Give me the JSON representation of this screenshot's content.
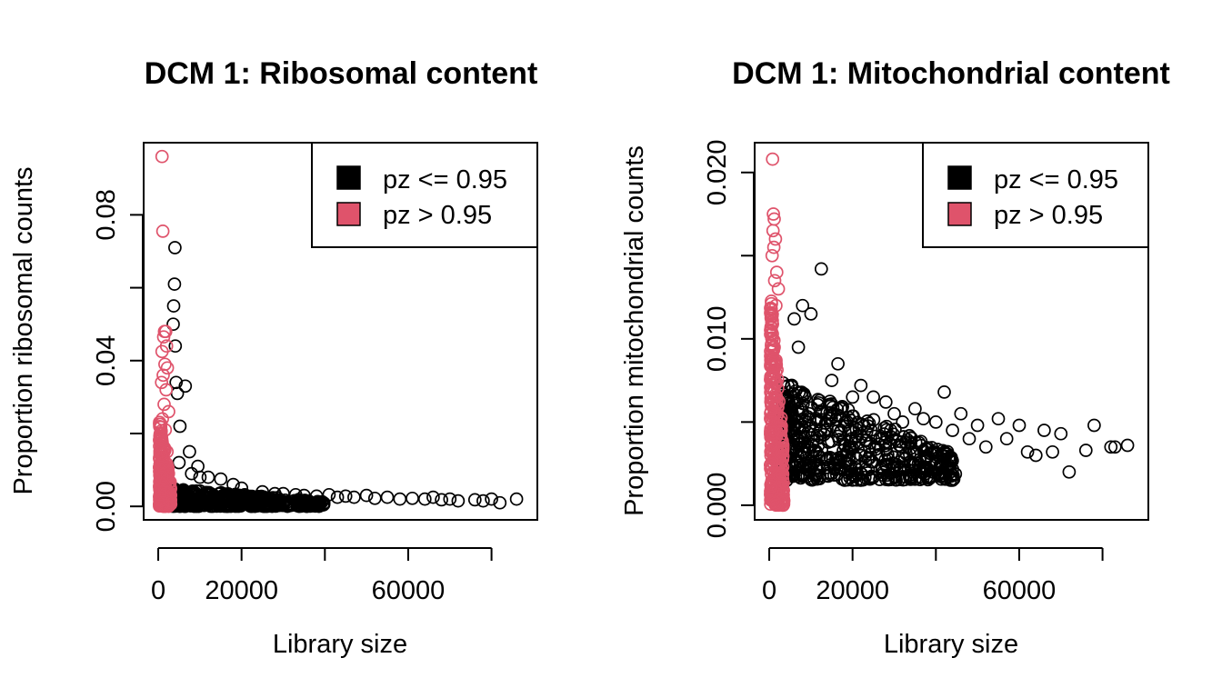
{
  "colors": {
    "black": "#000000",
    "red": "#DF536B",
    "background": "#ffffff"
  },
  "chart_data": [
    {
      "id": "ribo",
      "type": "scatter",
      "title": "DCM 1: Ribosomal content",
      "xlabel": "Library size",
      "ylabel": "Proportion ribosomal counts",
      "xlim": [
        -3500,
        91000
      ],
      "ylim": [
        -0.0037,
        0.0998
      ],
      "x_ticks": [
        0,
        20000,
        40000,
        60000,
        80000
      ],
      "x_tick_labels": [
        "0",
        "20000",
        "",
        "60000",
        ""
      ],
      "y_ticks": [
        0,
        0.02,
        0.04,
        0.06,
        0.08
      ],
      "y_tick_labels": [
        "0.00",
        "",
        "0.04",
        "",
        "0.08"
      ],
      "legend": {
        "position": "top-right",
        "items": [
          {
            "label": "pz <= 0.95",
            "color": "#000000"
          },
          {
            "label": "pz > 0.95",
            "color": "#DF536B"
          }
        ]
      },
      "series": [
        {
          "name": "pz > 0.95",
          "color": "#DF536B",
          "x": [
            900,
            1100,
            1500,
            1800,
            1300,
            2000,
            900,
            1600,
            2200,
            1200,
            800,
            1900,
            1400,
            2500,
            1000,
            1700,
            600,
            2100,
            1300,
            900
          ],
          "y": [
            0.096,
            0.0755,
            0.048,
            0.048,
            0.0465,
            0.044,
            0.0425,
            0.039,
            0.038,
            0.036,
            0.034,
            0.032,
            0.028,
            0.026,
            0.024,
            0.021,
            0.019,
            0.015,
            0.012,
            0.008
          ],
          "cloud": {
            "x": [
              300,
              3000
            ],
            "y": [
              0.0,
              0.025
            ],
            "n": 220
          }
        },
        {
          "name": "pz <= 0.95",
          "color": "#000000",
          "x": [
            4000,
            3900,
            3700,
            3600,
            4100,
            4300,
            6500,
            4600,
            5200,
            7500,
            9500,
            12000,
            5000,
            8000,
            10000,
            15000,
            18000,
            20000,
            25000,
            28000,
            30000,
            33000,
            35000,
            38000,
            41000,
            43000,
            45000,
            47000,
            50000,
            52000,
            55000,
            58000,
            61000,
            64000,
            66000,
            68000,
            70000,
            72000,
            76000,
            78000,
            80000,
            82000,
            86000
          ],
          "y": [
            0.071,
            0.061,
            0.055,
            0.05,
            0.044,
            0.034,
            0.033,
            0.031,
            0.022,
            0.015,
            0.011,
            0.008,
            0.012,
            0.009,
            0.008,
            0.0075,
            0.006,
            0.005,
            0.004,
            0.0035,
            0.0035,
            0.0032,
            0.003,
            0.0028,
            0.0032,
            0.0025,
            0.0028,
            0.0025,
            0.003,
            0.0022,
            0.0025,
            0.002,
            0.0022,
            0.002,
            0.0025,
            0.0018,
            0.002,
            0.0015,
            0.0018,
            0.0015,
            0.002,
            0.001,
            0.002
          ],
          "cloud": {
            "x": [
              3000,
              40000
            ],
            "y": [
              0.0,
              0.005
            ],
            "n": 520
          }
        }
      ]
    },
    {
      "id": "mito",
      "type": "scatter",
      "title": "DCM 1: Mitochondrial content",
      "xlabel": "Library size",
      "ylabel": "Proportion mitochondrial counts",
      "xlim": [
        -3500,
        91000
      ],
      "ylim": [
        -0.00088,
        0.02179
      ],
      "x_ticks": [
        0,
        20000,
        40000,
        60000,
        80000
      ],
      "x_tick_labels": [
        "0",
        "20000",
        "",
        "60000",
        ""
      ],
      "y_ticks": [
        0,
        0.005,
        0.01,
        0.015,
        0.02
      ],
      "y_tick_labels": [
        "0.000",
        "",
        "0.010",
        "",
        "0.020"
      ],
      "legend": {
        "position": "top-right",
        "items": [
          {
            "label": "pz <= 0.95",
            "color": "#000000"
          },
          {
            "label": "pz > 0.95",
            "color": "#DF536B"
          }
        ]
      },
      "series": [
        {
          "name": "pz > 0.95",
          "color": "#DF536B",
          "x": [
            800,
            1000,
            1200,
            900,
            1500,
            1100,
            700,
            1800,
            1300,
            2200,
            1600,
            600
          ],
          "y": [
            0.0208,
            0.0175,
            0.0172,
            0.0165,
            0.016,
            0.0155,
            0.015,
            0.014,
            0.0135,
            0.013,
            0.012,
            0.011
          ],
          "cloud": {
            "x": [
              300,
              3500
            ],
            "y": [
              0.0,
              0.013
            ],
            "n": 300
          }
        },
        {
          "name": "pz <= 0.95",
          "color": "#000000",
          "x": [
            12500,
            8000,
            10000,
            6000,
            7000,
            15000,
            16500,
            20000,
            22000,
            25000,
            28000,
            30000,
            32000,
            35000,
            37000,
            40000,
            42000,
            44000,
            46000,
            48000,
            50000,
            52000,
            55000,
            57000,
            60000,
            62000,
            64000,
            66000,
            68000,
            70000,
            72000,
            76000,
            78000,
            82000,
            83000,
            86000
          ],
          "y": [
            0.0142,
            0.012,
            0.0115,
            0.0112,
            0.0095,
            0.0075,
            0.0085,
            0.0065,
            0.0072,
            0.0065,
            0.0062,
            0.0055,
            0.005,
            0.0058,
            0.0052,
            0.005,
            0.0068,
            0.0045,
            0.0055,
            0.004,
            0.0048,
            0.0035,
            0.0052,
            0.004,
            0.0048,
            0.0032,
            0.003,
            0.0045,
            0.0032,
            0.0043,
            0.002,
            0.0033,
            0.0048,
            0.0035,
            0.0035,
            0.0036
          ],
          "cloud": {
            "x": [
              3000,
              45000
            ],
            "y": [
              0.0015,
              0.0075
            ],
            "n": 560
          }
        }
      ]
    }
  ]
}
